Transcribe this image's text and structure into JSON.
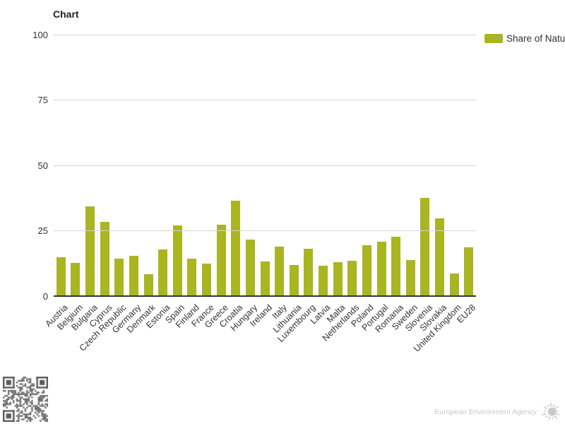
{
  "title": "Chart",
  "legend": {
    "label": "Share of Natu"
  },
  "footer": {
    "agency": "European Environment Agency"
  },
  "colors": {
    "bar": "#a9b521",
    "grid": "#d6d6d6",
    "axis": "#333333",
    "text": "#333333",
    "muted": "#c9c9c9",
    "qr": "#595959"
  },
  "chart_data": {
    "type": "bar",
    "title": "Chart",
    "xlabel": "",
    "ylabel": "",
    "ylim": [
      0,
      100
    ],
    "yticks": [
      0,
      25,
      50,
      75,
      100
    ],
    "grid": true,
    "legend_position": "top-right",
    "categories": [
      "Austria",
      "Belgium",
      "Bulgaria",
      "Cyprus",
      "Czech Republic",
      "Germany",
      "Denmark",
      "Estonia",
      "Spain",
      "Finland",
      "France",
      "Greece",
      "Croatia",
      "Hungary",
      "Ireland",
      "Italy",
      "Lithuania",
      "Luxembourg",
      "Latvia",
      "Malta",
      "Netherlands",
      "Poland",
      "Portugal",
      "Romania",
      "Sweden",
      "Slovenia",
      "Slovakia",
      "United Kingdom",
      "EU28"
    ],
    "series": [
      {
        "name": "Share of Natu",
        "values": [
          15.0,
          12.8,
          34.2,
          28.3,
          14.2,
          15.4,
          8.5,
          17.9,
          27.1,
          14.4,
          12.5,
          27.2,
          36.4,
          21.5,
          13.2,
          19.0,
          11.9,
          18.2,
          11.5,
          13.0,
          13.5,
          19.5,
          20.8,
          22.6,
          13.9,
          37.7,
          29.6,
          8.6,
          18.6
        ]
      }
    ]
  }
}
